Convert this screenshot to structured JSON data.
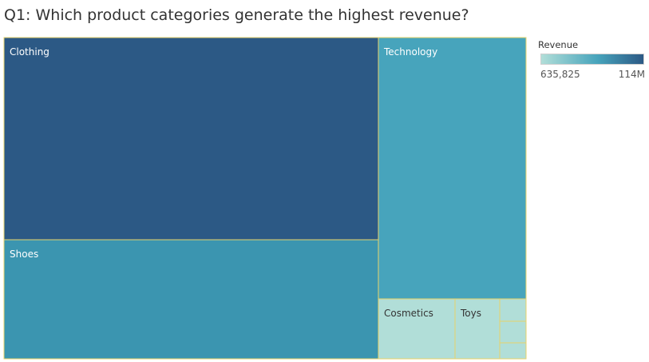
{
  "title": "Q1: Which product categories generate the highest revenue?",
  "legend": {
    "title": "Revenue",
    "min_label": "635,825",
    "max_label": "114M",
    "color_low": "#b1ded8",
    "color_mid": "#47a4bc",
    "color_high": "#2c5985"
  },
  "colors": {
    "border": "#e8d36a",
    "label_on_dark": "#ffffff",
    "label_on_light": "#333333"
  },
  "chart_data": {
    "type": "treemap",
    "title": "Q1: Which product categories generate the highest revenue?",
    "measure": "Revenue",
    "range": [
      635825,
      114000000
    ],
    "cells": [
      {
        "category": "Clothing",
        "value": 114000000,
        "color": "#2c5985",
        "label": "Clothing"
      },
      {
        "category": "Shoes",
        "value": 66600000,
        "color": "#3b95b0",
        "label": "Shoes"
      },
      {
        "category": "Technology",
        "value": 57200000,
        "color": "#47a4bc",
        "label": "Technology"
      },
      {
        "category": "Cosmetics",
        "value": 6800000,
        "color": "#b1ded8",
        "label": "Cosmetics"
      },
      {
        "category": "Toys",
        "value": 3900000,
        "color": "#b1ded8",
        "label": "Toys"
      },
      {
        "category": "",
        "value": 1000000,
        "color": "#b1ded8",
        "label": ""
      },
      {
        "category": "",
        "value": 900000,
        "color": "#b1ded8",
        "label": ""
      },
      {
        "category": "",
        "value": 635825,
        "color": "#b1ded8",
        "label": ""
      }
    ]
  }
}
